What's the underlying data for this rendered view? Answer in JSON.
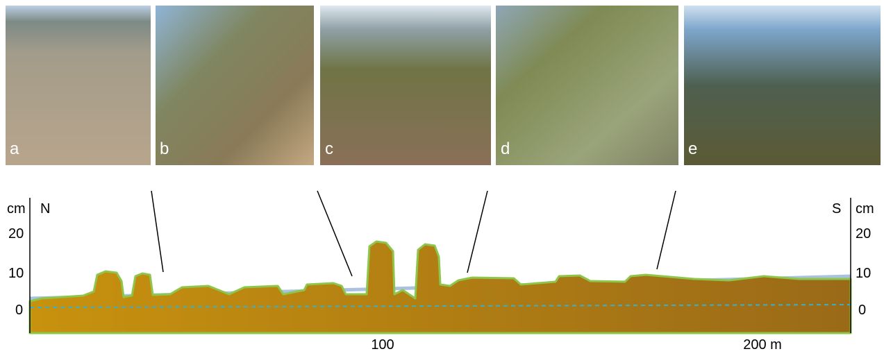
{
  "photos": [
    {
      "label": "a"
    },
    {
      "label": "b"
    },
    {
      "label": "c"
    },
    {
      "label": "d"
    },
    {
      "label": "e"
    }
  ],
  "profile": {
    "unit": "cm",
    "north": "N",
    "south": "S",
    "y_ticks": [
      "20",
      "10",
      "0"
    ],
    "x_ticks": [
      "100",
      "200 m"
    ]
  }
}
